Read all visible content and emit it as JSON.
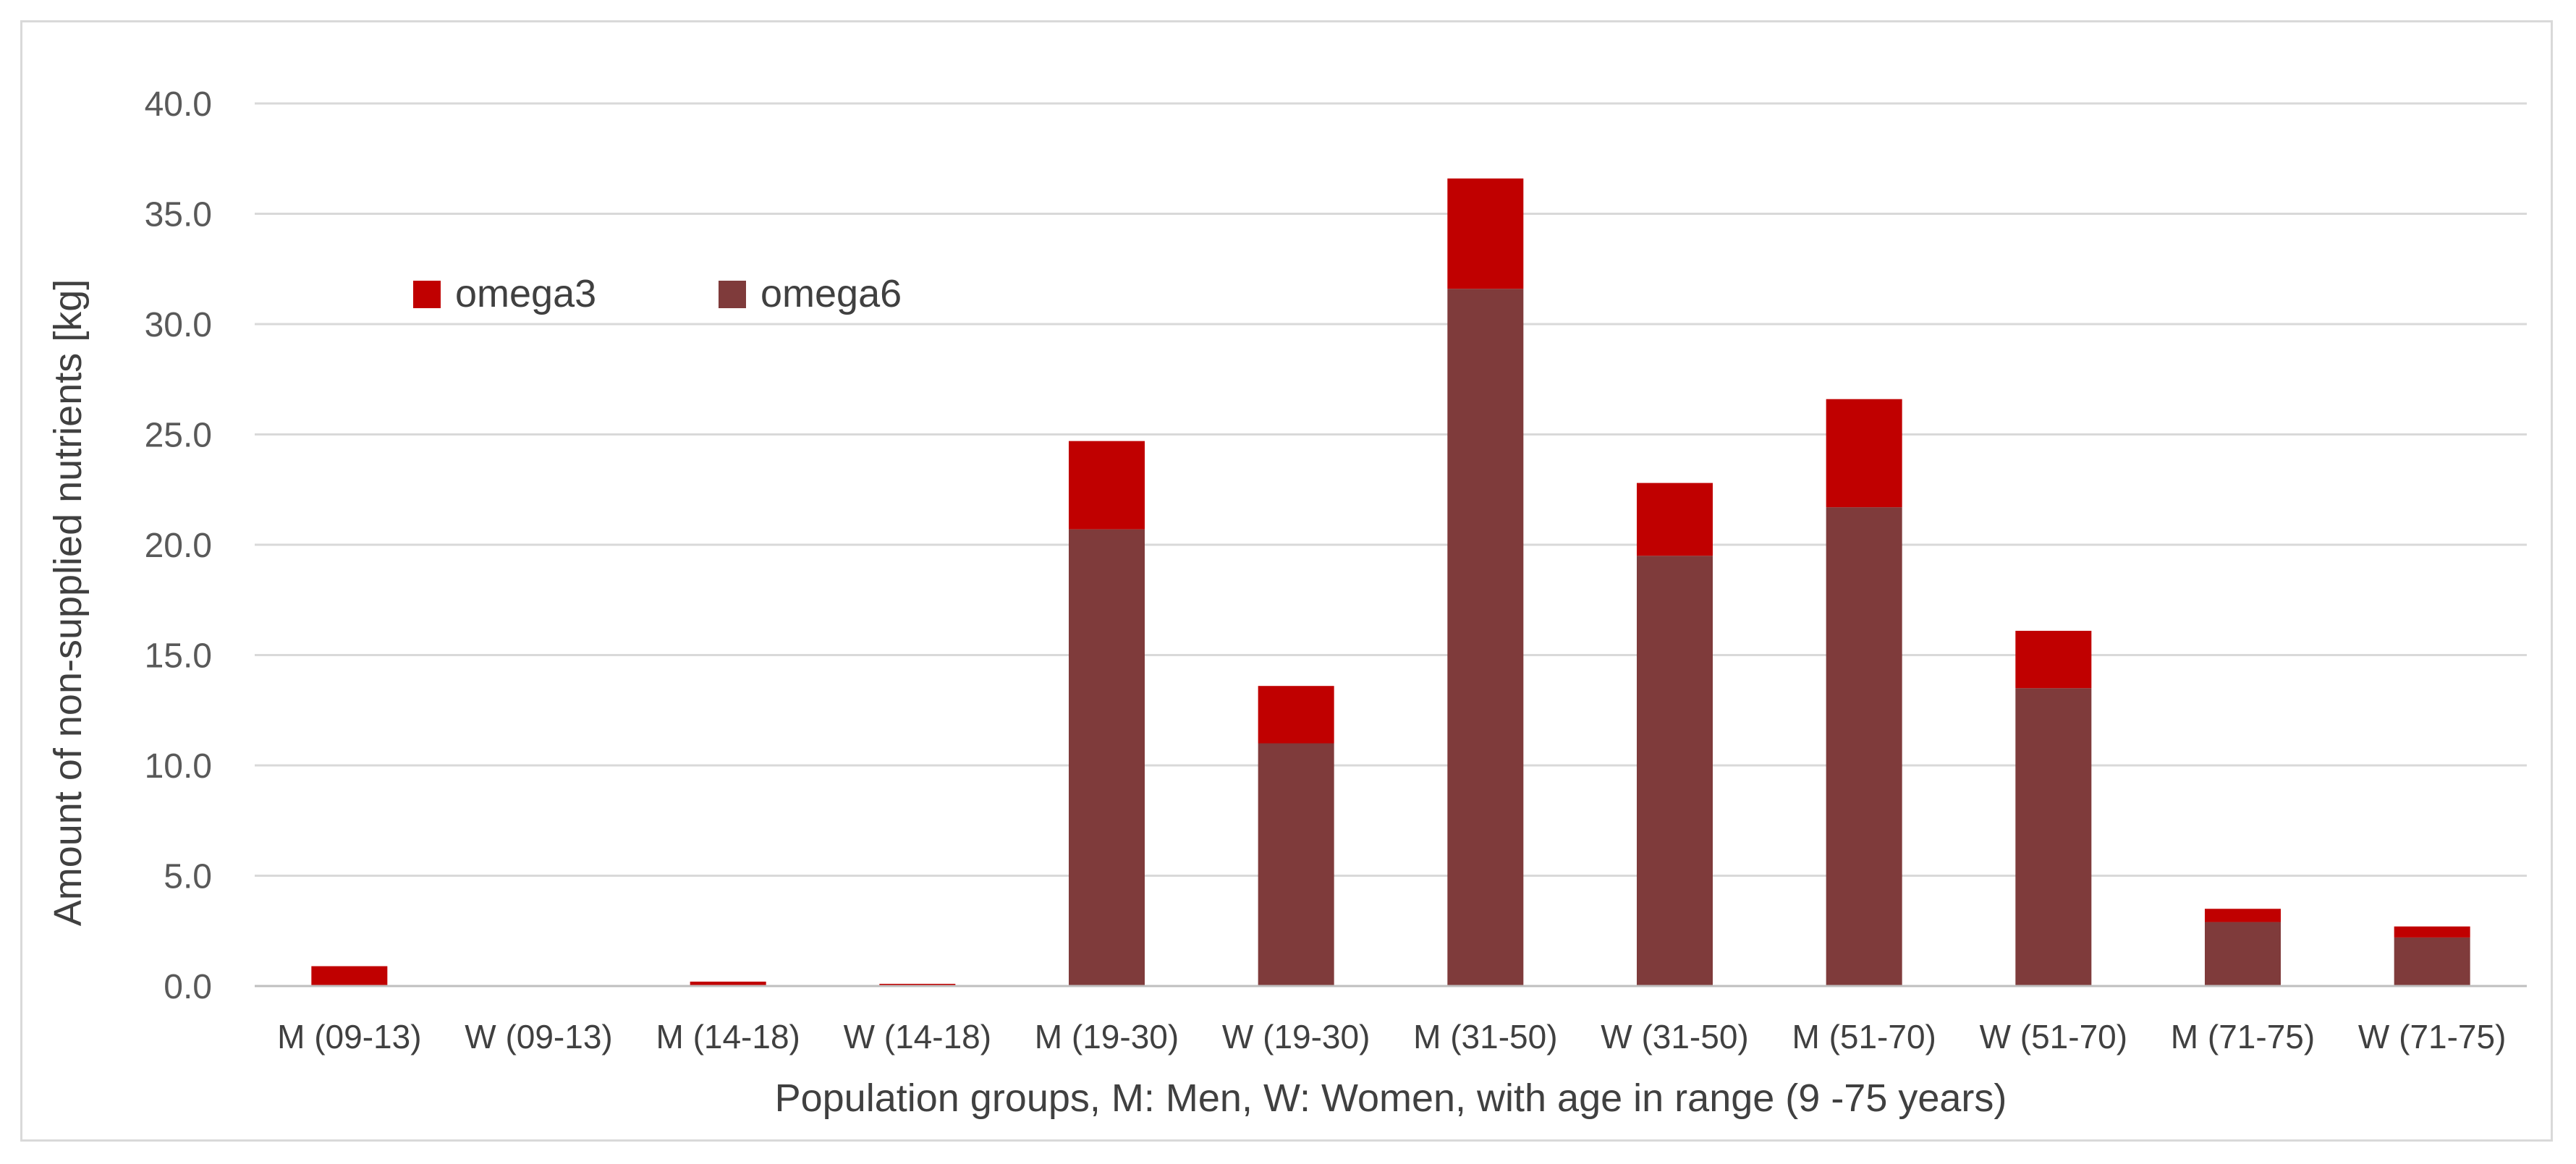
{
  "chart_data": {
    "type": "bar",
    "stacked": true,
    "categories": [
      "M (09-13)",
      "W (09-13)",
      "M (14-18)",
      "W (14-18)",
      "M (19-30)",
      "W (19-30)",
      "M (31-50)",
      "W (31-50)",
      "M (51-70)",
      "W (51-70)",
      "M (71-75)",
      "W (71-75)"
    ],
    "series": [
      {
        "name": "omega6",
        "color": "#7f3b3b",
        "values": [
          0.0,
          0.0,
          0.0,
          0.0,
          20.7,
          11.0,
          31.6,
          19.5,
          21.7,
          13.5,
          2.9,
          2.2
        ]
      },
      {
        "name": "omega3",
        "color": "#c00000",
        "values": [
          0.9,
          0.0,
          0.2,
          0.1,
          4.0,
          2.6,
          5.0,
          3.3,
          4.9,
          2.6,
          0.6,
          0.5
        ]
      }
    ],
    "legend": [
      {
        "name": "omega3",
        "color": "#c00000"
      },
      {
        "name": "omega6",
        "color": "#7f3b3b"
      }
    ],
    "legend_position": "top-left",
    "xlabel": "Population groups, M: Men, W: Women, with age in range (9 -75 years)",
    "ylabel": "Amount of non-supplied nutrients [kg]",
    "ylim": [
      0,
      40
    ],
    "yticks": [
      "0.0",
      "5.0",
      "10.0",
      "15.0",
      "20.0",
      "25.0",
      "30.0",
      "35.0",
      "40.0"
    ],
    "grid": true
  }
}
